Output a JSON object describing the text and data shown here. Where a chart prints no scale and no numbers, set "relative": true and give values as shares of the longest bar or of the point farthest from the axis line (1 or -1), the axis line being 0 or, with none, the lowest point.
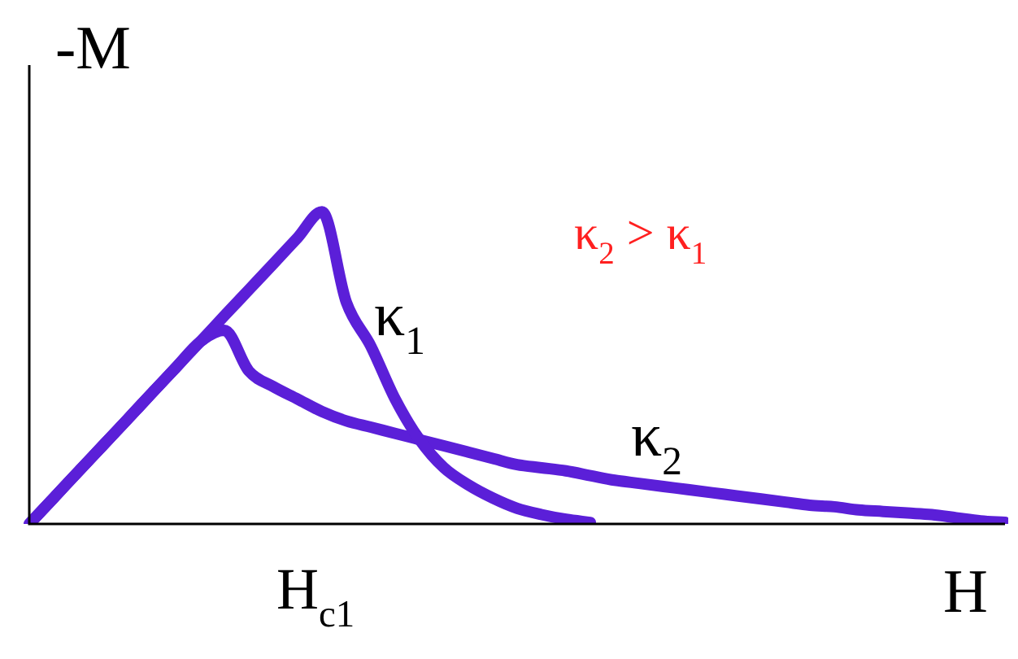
{
  "chart_data": {
    "type": "line",
    "relative": true,
    "ylabel": "-M",
    "xlabel": "H",
    "tick_labels": false,
    "legend": false,
    "marker": "none",
    "line_style": "solid",
    "annotations": [
      "κ$_{2}$ > κ$_{1}$",
      "H$_{c1}$"
    ],
    "categories": [
      null,
      null,
      null,
      null,
      null,
      null,
      null,
      null,
      null,
      null,
      null,
      null,
      null,
      null,
      null,
      null,
      null,
      null,
      null,
      null,
      null,
      null,
      null,
      null,
      null,
      null,
      null,
      null,
      null,
      null,
      null,
      null,
      null,
      null,
      null,
      null,
      null,
      null,
      null,
      null,
      null
    ],
    "series": [
      {
        "name": "κ$_{1}$",
        "color": "#5b1fd8",
        "values": [
          0,
          0.083,
          0.167,
          0.25,
          0.333,
          0.417,
          0.5,
          0.583,
          0.667,
          0.75,
          0.833,
          0.917,
          1,
          0.71,
          0.57,
          0.4,
          0.27,
          0.18,
          0.125,
          0.083,
          0.05,
          0.03,
          0.015,
          0.005,
          null,
          null,
          null,
          null,
          null,
          null,
          null,
          null,
          null,
          null,
          null,
          null,
          null,
          null,
          null,
          null,
          null
        ]
      },
      {
        "name": "κ$_{2}$",
        "color": "#5b1fd8",
        "values": [
          0,
          0.083,
          0.167,
          0.25,
          0.333,
          0.417,
          0.5,
          0.583,
          0.62,
          0.49,
          0.44,
          0.4,
          0.36,
          0.33,
          0.31,
          0.29,
          0.27,
          0.25,
          0.23,
          0.21,
          0.19,
          0.18,
          0.17,
          0.155,
          0.14,
          0.13,
          0.12,
          0.11,
          0.1,
          0.09,
          0.08,
          0.07,
          0.06,
          0.055,
          0.045,
          0.04,
          0.035,
          0.03,
          0.02,
          0.01,
          0.005
        ]
      }
    ]
  }
}
